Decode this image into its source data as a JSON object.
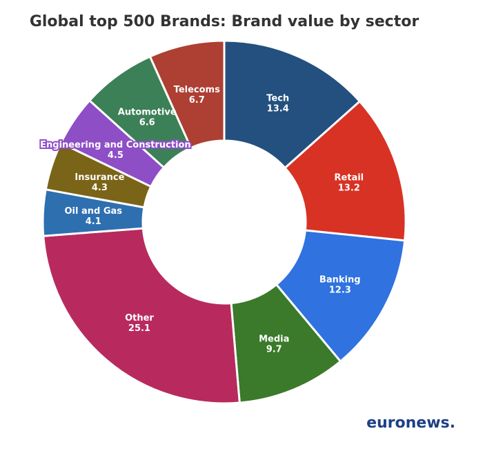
{
  "chart_data": {
    "type": "donut",
    "title": "Global top 500 Brands: Brand value by sector",
    "categories": [
      "Tech",
      "Retail",
      "Banking",
      "Media",
      "Other",
      "Oil and Gas",
      "Insurance",
      "Engineering and Construction",
      "Automotive",
      "Telecoms"
    ],
    "values": [
      13.4,
      13.2,
      12.3,
      9.7,
      25.1,
      4.1,
      4.3,
      4.5,
      6.6,
      6.7
    ],
    "colors": [
      "#23507f",
      "#d83224",
      "#2f72e0",
      "#3a7a2a",
      "#b82a5e",
      "#2e6fb0",
      "#7a6417",
      "#8e4ec6",
      "#3c8058",
      "#ae3f33"
    ],
    "source": "euronews."
  }
}
